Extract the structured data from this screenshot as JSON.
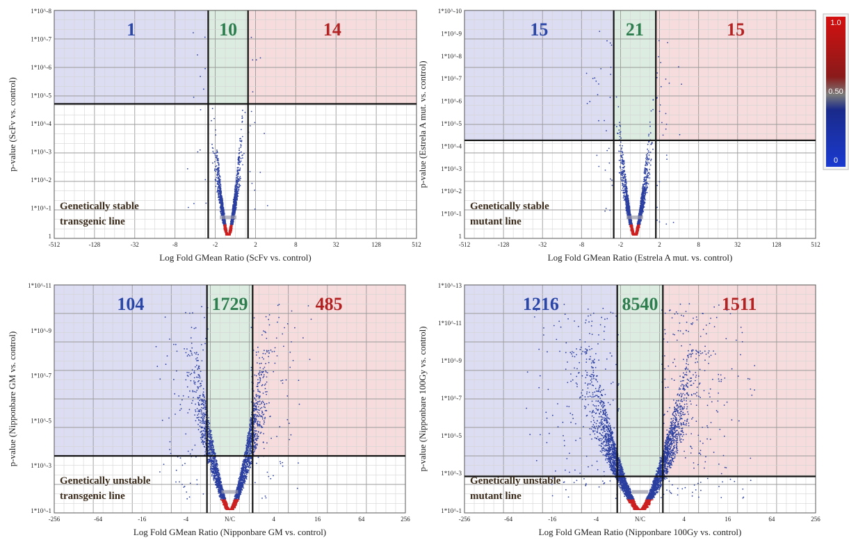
{
  "colors": {
    "down": "#2a46a6",
    "nc": "#2e7d4f",
    "up": "#b22222",
    "down_bg": "#dcdcf2",
    "nc_bg": "#dcece0",
    "up_bg": "#f6dcdc",
    "point": "#2b3fa0",
    "point_low": "#cc2020"
  },
  "colorbar": {
    "labels": [
      "1.0",
      "0.50",
      "0"
    ]
  },
  "chart_data": [
    {
      "type": "scatter",
      "xlabel": "Log Fold GMean Ratio (ScFv vs. control)",
      "ylabel": "p-value (ScFv vs. control)",
      "x_ticks": [
        "-512",
        "-128",
        "-32",
        "-8",
        "-2",
        "2",
        "8",
        "32",
        "128",
        "512"
      ],
      "y_ticks": [
        "1*10^-8",
        "1*10^-7",
        "1*10^-6",
        "1*10^-5",
        "1*10^-4",
        "1*10^-3",
        "1*10^-2",
        "1*10^-1",
        "1"
      ],
      "counts": {
        "down": "1",
        "nc": "10",
        "up": "14"
      },
      "annotation": [
        "Genetically stable",
        "transgenic line"
      ],
      "thresholds": {
        "fold": 2,
        "pvalue": 2e-05
      }
    },
    {
      "type": "scatter",
      "xlabel": "Log Fold GMean Ratio (Estrela A mut. vs. control)",
      "ylabel": "p-value (Estrela A mut. vs. control)",
      "x_ticks": [
        "-512",
        "-128",
        "-32",
        "-8",
        "-2",
        "2",
        "8",
        "32",
        "128",
        "512"
      ],
      "y_ticks": [
        "1*10^-10",
        "1*10^-9",
        "1*10^-8",
        "1*10^-7",
        "1*10^-6",
        "1*10^-5",
        "1*10^-4",
        "1*10^-3",
        "1*10^-2",
        "1*10^-1",
        "1"
      ],
      "counts": {
        "down": "15",
        "nc": "21",
        "up": "15"
      },
      "annotation": [
        "Genetically stable",
        "mutant line"
      ],
      "thresholds": {
        "fold": 2,
        "pvalue": 4e-05
      }
    },
    {
      "type": "scatter",
      "xlabel": "Log Fold GMean Ratio (Nipponbare GM vs. control)",
      "ylabel": "p-value (Nipponbare GM vs. control)",
      "x_ticks": [
        "-256",
        "-64",
        "-16",
        "-4",
        "N/C",
        "4",
        "16",
        "64",
        "256"
      ],
      "y_ticks": [
        "1*10^-11",
        "1*10^-9",
        "1*10^-7",
        "1*10^-5",
        "1*10^-3",
        "1*10^-1"
      ],
      "counts": {
        "down": "104",
        "nc": "1729",
        "up": "485"
      },
      "annotation": [
        "Genetically unstable",
        "transgenic line"
      ],
      "thresholds": {
        "fold": 2,
        "pvalue": 0.0005
      }
    },
    {
      "type": "scatter",
      "xlabel": "Log Fold GMean Ratio (Nipponbare 100Gy vs. control)",
      "ylabel": "p-value (Nipponbare 100Gy vs. control)",
      "x_ticks": [
        "-256",
        "-64",
        "-16",
        "-4",
        "N/C",
        "4",
        "16",
        "64",
        "256"
      ],
      "y_ticks": [
        "1*10^-13",
        "1*10^-11",
        "1*10^-9",
        "1*10^-7",
        "1*10^-5",
        "1*10^-3",
        "1*10^-1"
      ],
      "counts": {
        "down": "1216",
        "nc": "8540",
        "up": "1511"
      },
      "annotation": [
        "Genetically unstable",
        "mutant line"
      ],
      "thresholds": {
        "fold": 2,
        "pvalue": 0.01
      }
    }
  ]
}
